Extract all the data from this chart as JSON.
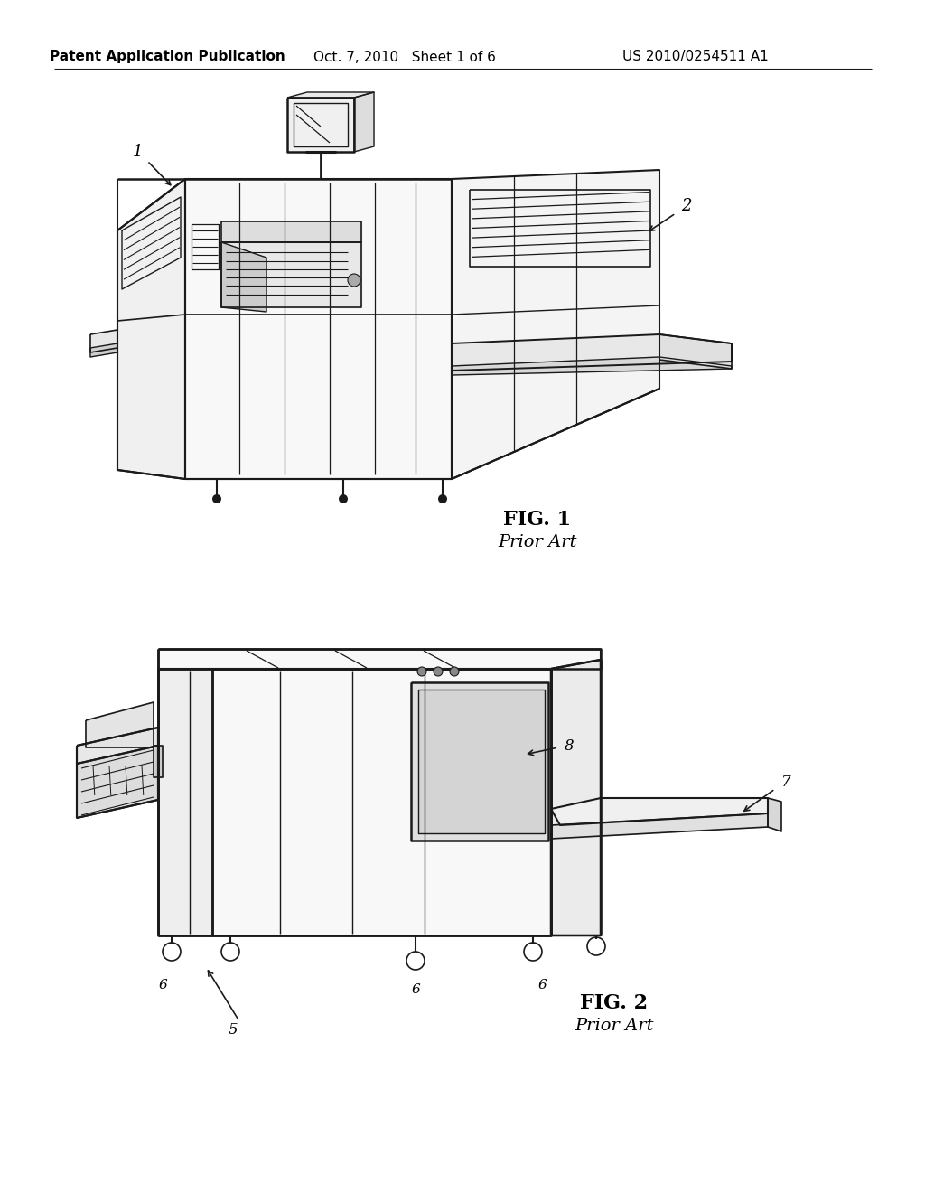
{
  "background_color": "#ffffff",
  "header_left": "Patent Application Publication",
  "header_mid": "Oct. 7, 2010   Sheet 1 of 6",
  "header_right": "US 2010/0254511 A1",
  "fig1_label": "FIG. 1",
  "fig1_sublabel": "Prior Art",
  "fig2_label": "FIG. 2",
  "fig2_sublabel": "Prior Art",
  "line_color": "#1a1a1a",
  "text_color": "#000000"
}
